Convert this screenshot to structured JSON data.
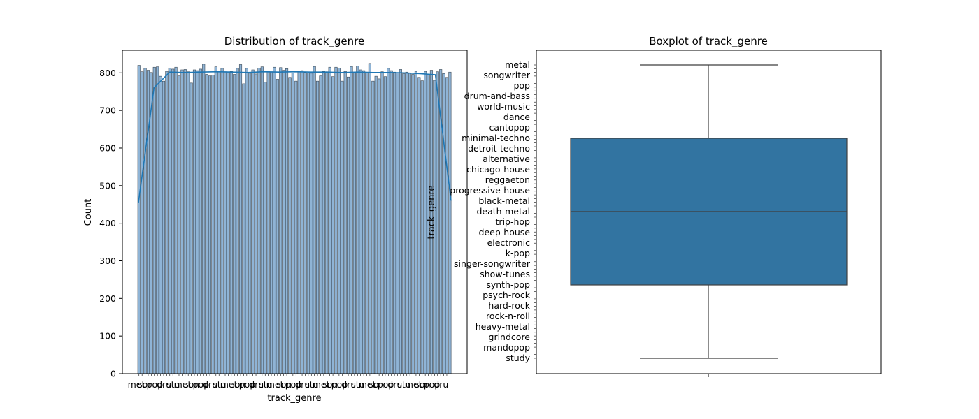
{
  "chart_data": [
    {
      "type": "bar",
      "title": "Distribution of track_genre",
      "xlabel": "track_genre",
      "ylabel": "Count",
      "ylim": [
        0,
        860
      ],
      "yticks": [
        0,
        100,
        200,
        300,
        400,
        500,
        600,
        700,
        800
      ],
      "x_tick_labels_visible": [
        "metal",
        "songwriter",
        "pop",
        "drum-and-bass",
        "study"
      ],
      "values": [
        820,
        803,
        812,
        807,
        801,
        815,
        816,
        791,
        778,
        804,
        813,
        810,
        815,
        792,
        808,
        809,
        803,
        773,
        808,
        806,
        810,
        823,
        796,
        792,
        794,
        816,
        805,
        812,
        803,
        802,
        804,
        796,
        812,
        822,
        771,
        812,
        799,
        808,
        797,
        813,
        816,
        775,
        805,
        803,
        815,
        783,
        814,
        807,
        811,
        788,
        800,
        778,
        805,
        806,
        801,
        800,
        799,
        817,
        778,
        792,
        804,
        803,
        815,
        790,
        815,
        813,
        778,
        804,
        789,
        817,
        802,
        818,
        808,
        806,
        802,
        825,
        778,
        791,
        784,
        803,
        790,
        812,
        806,
        802,
        800,
        809,
        798,
        802,
        800,
        796,
        804,
        788,
        779,
        804,
        795,
        807,
        780,
        803,
        809,
        798,
        788,
        802
      ],
      "kde_y": [
        455,
        760,
        802,
        801,
        802,
        803,
        802,
        801,
        803,
        802,
        803,
        802,
        802,
        801,
        802,
        801,
        801,
        800,
        798,
        795,
        460
      ],
      "series": [
        {
          "name": "",
          "color": "#1f77b4"
        }
      ],
      "grid": false
    },
    {
      "type": "boxplot",
      "title": "Boxplot of track_genre",
      "ylabel": "track_genre",
      "y_tick_labels": [
        "metal",
        "songwriter",
        "pop",
        "drum-and-bass",
        "world-music",
        "dance",
        "cantopop",
        "minimal-techno",
        "detroit-techno",
        "alternative",
        "chicago-house",
        "reggaeton",
        "progressive-house",
        "black-metal",
        "death-metal",
        "trip-hop",
        "deep-house",
        "electronic",
        "k-pop",
        "singer-songwriter",
        "show-tunes",
        "synth-pop",
        "psych-rock",
        "hard-rock",
        "rock-n-roll",
        "heavy-metal",
        "grindcore",
        "mandopop",
        "study"
      ],
      "box": {
        "whisker_low": 0,
        "q1": 0.25,
        "median": 0.5,
        "q3": 0.75,
        "whisker_high": 1
      },
      "color": "#3274a1"
    }
  ]
}
